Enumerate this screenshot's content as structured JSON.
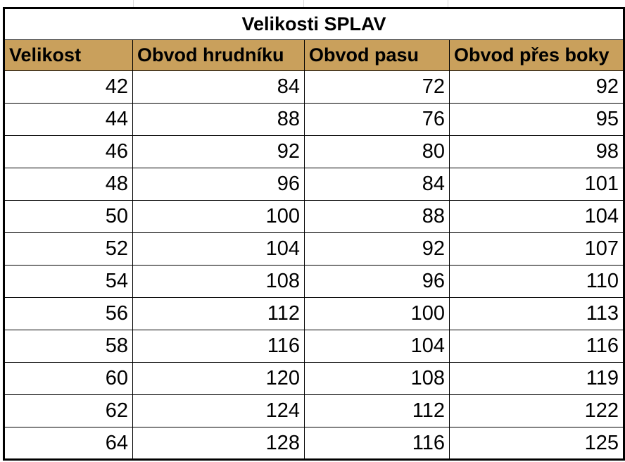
{
  "title": "Velikosti SPLAV",
  "colors": {
    "header_background": "#c9a05c",
    "border": "#000000",
    "text": "#000000"
  },
  "columns": [
    "Velikost",
    "Obvod hrudníku",
    "Obvod pasu",
    "Obvod přes boky"
  ],
  "rows": [
    [
      "42",
      "84",
      "72",
      "92"
    ],
    [
      "44",
      "88",
      "76",
      "95"
    ],
    [
      "46",
      "92",
      "80",
      "98"
    ],
    [
      "48",
      "96",
      "84",
      "101"
    ],
    [
      "50",
      "100",
      "88",
      "104"
    ],
    [
      "52",
      "104",
      "92",
      "107"
    ],
    [
      "54",
      "108",
      "96",
      "110"
    ],
    [
      "56",
      "112",
      "100",
      "113"
    ],
    [
      "58",
      "116",
      "104",
      "116"
    ],
    [
      "60",
      "120",
      "108",
      "119"
    ],
    [
      "62",
      "124",
      "112",
      "122"
    ],
    [
      "64",
      "128",
      "116",
      "125"
    ]
  ]
}
